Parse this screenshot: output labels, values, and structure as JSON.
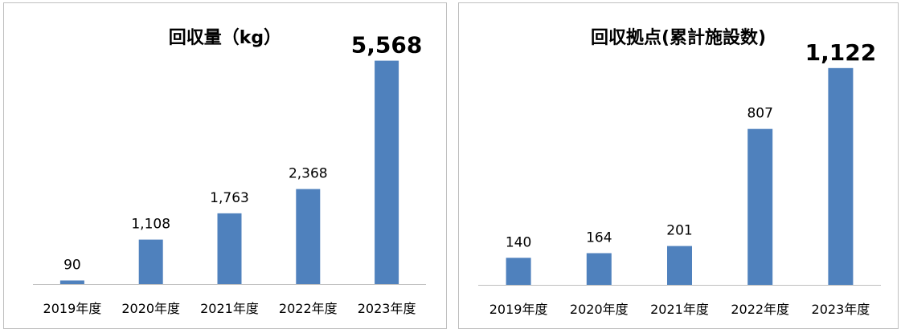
{
  "chart_data": [
    {
      "type": "bar",
      "title": "回収量（kg）",
      "categories": [
        "2019年度",
        "2020年度",
        "2021年度",
        "2022年度",
        "2023年度"
      ],
      "values": [
        90,
        1108,
        1763,
        2368,
        5568
      ],
      "value_labels": [
        "90",
        "1,108",
        "1,763",
        "2,368",
        "5,568"
      ],
      "highlight_last_label": true,
      "bar_color": "#4f81bd",
      "ylim": [
        0,
        6000
      ],
      "grid": false,
      "legend": "none",
      "xlabel": "",
      "ylabel": ""
    },
    {
      "type": "bar",
      "title": "回収拠点(累計施設数)",
      "categories": [
        "2019年度",
        "2020年度",
        "2021年度",
        "2022年度",
        "2023年度"
      ],
      "values": [
        140,
        164,
        201,
        807,
        1122
      ],
      "value_labels": [
        "140",
        "164",
        "201",
        "807",
        "1,122"
      ],
      "highlight_last_label": true,
      "bar_color": "#4f81bd",
      "ylim": [
        0,
        1250
      ],
      "grid": false,
      "legend": "none",
      "xlabel": "",
      "ylabel": ""
    }
  ]
}
